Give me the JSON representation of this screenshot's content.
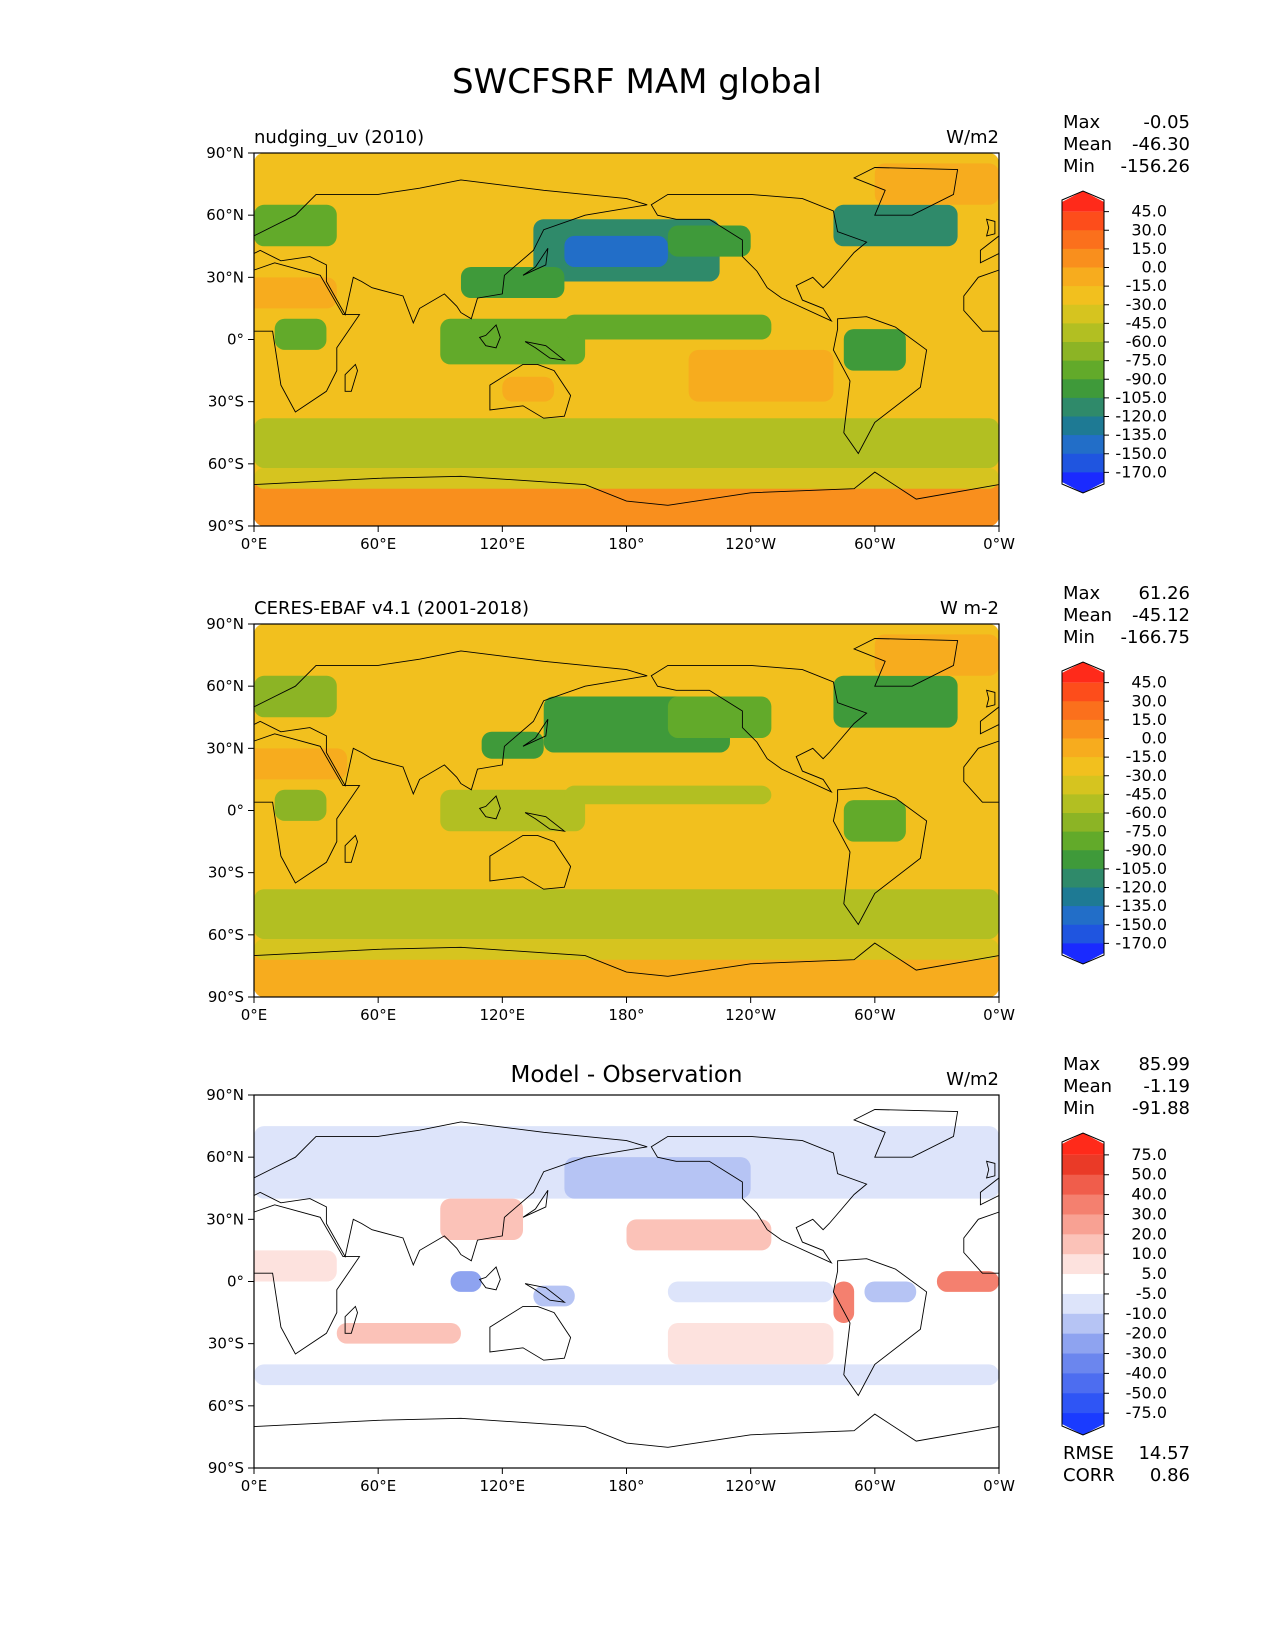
{
  "figure": {
    "title": "SWCFSRF MAM global"
  },
  "colors": {
    "sequential": [
      "#1a2aff",
      "#1f55e0",
      "#226ec8",
      "#1e7a94",
      "#2f8a6a",
      "#3f9a3a",
      "#62aa2a",
      "#8cb425",
      "#b2bf22",
      "#d6c41f",
      "#f2c01e",
      "#f7ac1e",
      "#f98f1d",
      "#fb701c",
      "#fd4d1b",
      "#ff2a1a"
    ],
    "diverging": [
      "#1a3bff",
      "#2f55f5",
      "#4d6df0",
      "#6b86ee",
      "#8ea3f0",
      "#b6c4f4",
      "#dde4fa",
      "#ffffff",
      "#fde2de",
      "#fbc2b8",
      "#f8a193",
      "#f4806f",
      "#f05d4b",
      "#ea3a27",
      "#ff2a1a"
    ]
  },
  "chart_data": [
    {
      "type": "heatmap",
      "title": "",
      "left_title": "nudging_uv (2010)",
      "units": "W/m2",
      "xlim": [
        0,
        360
      ],
      "ylim": [
        -90,
        90
      ],
      "x_ticks": [
        "0°E",
        "60°E",
        "120°E",
        "180°",
        "120°W",
        "60°W",
        "0°W"
      ],
      "y_ticks": [
        "90°N",
        "60°N",
        "30°N",
        "0°",
        "30°S",
        "60°S",
        "90°S"
      ],
      "stats": [
        {
          "label": "Max",
          "value": "-0.05"
        },
        {
          "label": "Mean",
          "value": "-46.30"
        },
        {
          "label": "Min",
          "value": "-156.26"
        }
      ],
      "colorbar": {
        "palette": "sequential",
        "labels": [
          "45.0",
          "30.0",
          "15.0",
          "0.0",
          "-15.0",
          "-30.0",
          "-45.0",
          "-60.0",
          "-75.0",
          "-90.0",
          "-105.0",
          "-120.0",
          "-135.0",
          "-150.0",
          "-170.0"
        ]
      }
    },
    {
      "type": "heatmap",
      "title": "",
      "left_title": "CERES-EBAF v4.1 (2001-2018)",
      "units": "W m-2",
      "xlim": [
        0,
        360
      ],
      "ylim": [
        -90,
        90
      ],
      "x_ticks": [
        "0°E",
        "60°E",
        "120°E",
        "180°",
        "120°W",
        "60°W",
        "0°W"
      ],
      "y_ticks": [
        "90°N",
        "60°N",
        "30°N",
        "0°",
        "30°S",
        "60°S",
        "90°S"
      ],
      "stats": [
        {
          "label": "Max",
          "value": "61.26"
        },
        {
          "label": "Mean",
          "value": "-45.12"
        },
        {
          "label": "Min",
          "value": "-166.75"
        }
      ],
      "colorbar": {
        "palette": "sequential",
        "labels": [
          "45.0",
          "30.0",
          "15.0",
          "0.0",
          "-15.0",
          "-30.0",
          "-45.0",
          "-60.0",
          "-75.0",
          "-90.0",
          "-105.0",
          "-120.0",
          "-135.0",
          "-150.0",
          "-170.0"
        ]
      }
    },
    {
      "type": "heatmap",
      "title": "Model - Observation",
      "left_title": "",
      "units": "W/m2",
      "xlim": [
        0,
        360
      ],
      "ylim": [
        -90,
        90
      ],
      "x_ticks": [
        "0°E",
        "60°E",
        "120°E",
        "180°",
        "120°W",
        "60°W",
        "0°W"
      ],
      "y_ticks": [
        "90°N",
        "60°N",
        "30°N",
        "0°",
        "30°S",
        "60°S",
        "90°S"
      ],
      "stats": [
        {
          "label": "Max",
          "value": "85.99"
        },
        {
          "label": "Mean",
          "value": "-1.19"
        },
        {
          "label": "Min",
          "value": "-91.88"
        }
      ],
      "colorbar": {
        "palette": "diverging",
        "labels": [
          "75.0",
          "50.0",
          "40.0",
          "30.0",
          "20.0",
          "10.0",
          "5.0",
          "-5.0",
          "-10.0",
          "-20.0",
          "-30.0",
          "-40.0",
          "-50.0",
          "-75.0"
        ]
      },
      "extra_stats": [
        {
          "label": "RMSE",
          "value": "14.57"
        },
        {
          "label": "CORR",
          "value": "0.86"
        }
      ]
    }
  ]
}
